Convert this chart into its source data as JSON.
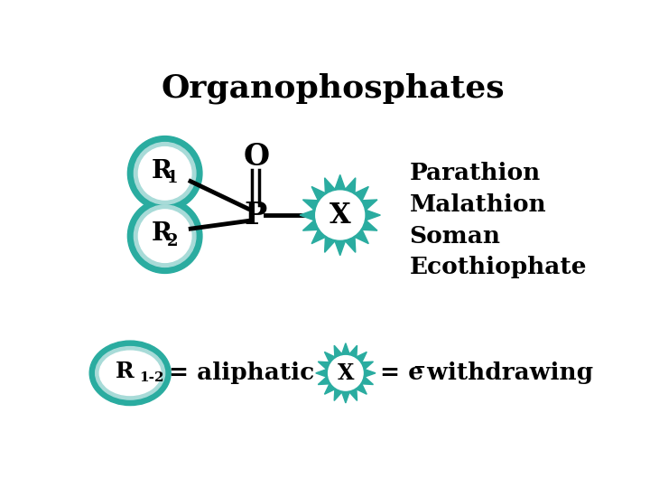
{
  "title": "Organophosphates",
  "title_fontsize": 26,
  "bg_color": "#ffffff",
  "teal_dark": "#2aaca0",
  "teal_light": "#a8dbd8",
  "teal_star": "#2aaca0",
  "text_color": "#000000",
  "compounds": [
    "Parathion",
    "Malathion",
    "Soman",
    "Ecothiophate"
  ],
  "compound_fontsize": 19,
  "mol_fontsize": 22,
  "legend_fontsize": 19
}
